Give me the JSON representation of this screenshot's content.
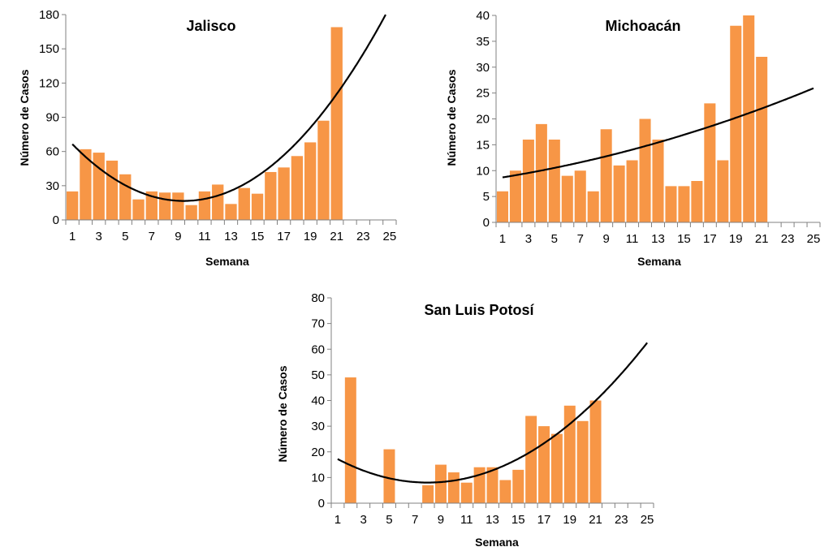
{
  "bar_color": "#F79646",
  "trend_color": "#000000",
  "axis_color": "#808080",
  "chart_data": [
    {
      "type": "bar",
      "title": "Jalisco",
      "xlabel": "Semana",
      "ylabel": "Número de Casos",
      "xlim": [
        1,
        25
      ],
      "ylim": [
        0,
        180
      ],
      "yticks": [
        0,
        30,
        60,
        90,
        120,
        150,
        180
      ],
      "xtick_labels": [
        "1",
        "3",
        "5",
        "7",
        "9",
        "11",
        "13",
        "15",
        "17",
        "19",
        "21",
        "23",
        "25"
      ],
      "x": [
        1,
        2,
        3,
        4,
        5,
        6,
        7,
        8,
        9,
        10,
        11,
        12,
        13,
        14,
        15,
        16,
        17,
        18,
        19,
        20,
        21
      ],
      "values": [
        25,
        62,
        59,
        52,
        40,
        18,
        25,
        24,
        24,
        13,
        25,
        31,
        14,
        28,
        23,
        42,
        46,
        56,
        68,
        87,
        169
      ],
      "trendline": {
        "type": "polynomial",
        "order": 2,
        "coefficients": [
          0.7,
          -13.2,
          78.9
        ]
      }
    },
    {
      "type": "bar",
      "title": "Michoacán",
      "xlabel": "Semana",
      "ylabel": "Número de Casos",
      "xlim": [
        1,
        25
      ],
      "ylim": [
        0,
        40
      ],
      "yticks": [
        0,
        5,
        10,
        15,
        20,
        25,
        30,
        35,
        40
      ],
      "xtick_labels": [
        "1",
        "3",
        "5",
        "7",
        "9",
        "11",
        "13",
        "15",
        "17",
        "19",
        "21",
        "23",
        "25"
      ],
      "x": [
        1,
        2,
        3,
        4,
        5,
        6,
        7,
        8,
        9,
        10,
        11,
        12,
        13,
        14,
        15,
        16,
        17,
        18,
        19,
        20,
        21
      ],
      "values": [
        6,
        10,
        16,
        19,
        16,
        9,
        10,
        6,
        18,
        11,
        12,
        20,
        16,
        7,
        7,
        8,
        23,
        12,
        38,
        40,
        32
      ],
      "trendline": {
        "type": "polynomial",
        "order": 2,
        "coefficients": [
          0.013,
          0.38,
          8.3
        ]
      }
    },
    {
      "type": "bar",
      "title": "San Luis Potosí",
      "xlabel": "Semana",
      "ylabel": "Número de Casos",
      "xlim": [
        1,
        25
      ],
      "ylim": [
        0,
        80
      ],
      "yticks": [
        0,
        10,
        20,
        30,
        40,
        50,
        60,
        70,
        80
      ],
      "xtick_labels": [
        "1",
        "3",
        "5",
        "7",
        "9",
        "11",
        "13",
        "15",
        "17",
        "19",
        "21",
        "23",
        "25"
      ],
      "x": [
        2,
        5,
        8,
        9,
        10,
        11,
        12,
        13,
        14,
        15,
        16,
        17,
        18,
        19,
        20,
        21
      ],
      "values": [
        49,
        21,
        7,
        15,
        12,
        8,
        14,
        14,
        9,
        13,
        34,
        30,
        27,
        38,
        32,
        40
      ],
      "trendline": {
        "type": "polynomial",
        "order": 2,
        "coefficients": [
          0.188,
          -3.0,
          20.0
        ]
      }
    }
  ]
}
